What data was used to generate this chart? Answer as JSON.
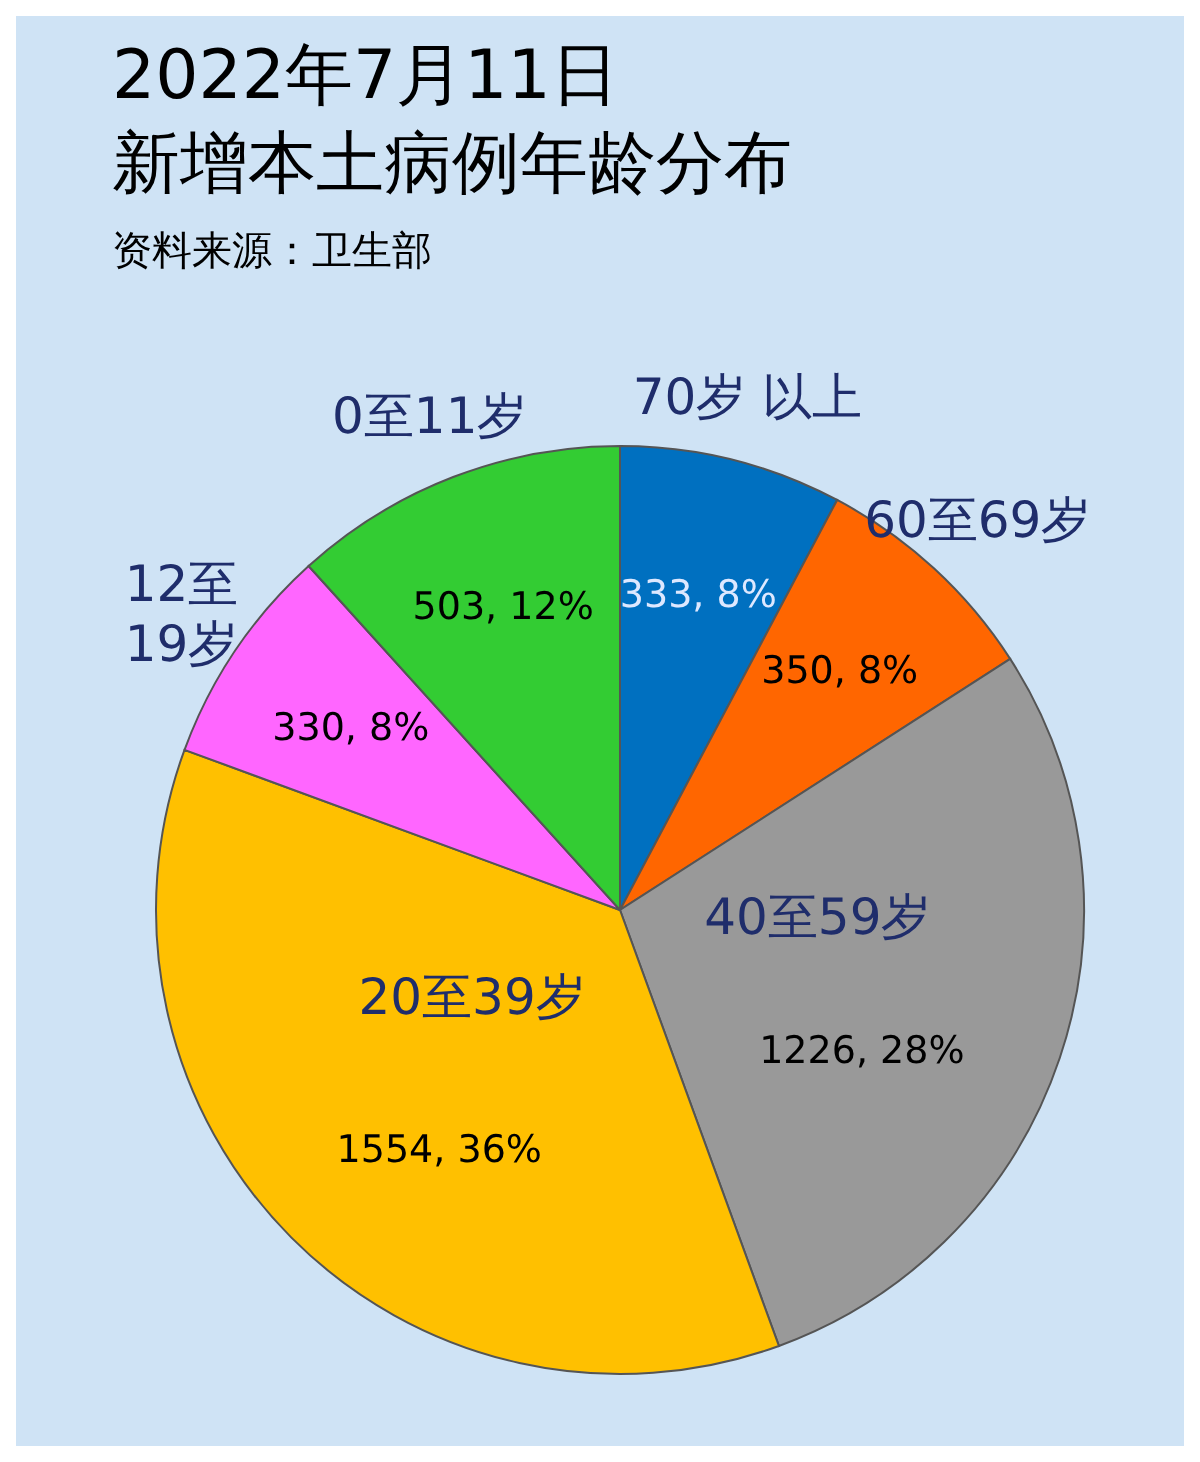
{
  "chart_data": {
    "type": "pie",
    "title": "2022年7月11日",
    "subtitle": "新增本土病例年龄分布",
    "annotations": [
      "资料来源：卫生部"
    ],
    "categories": [
      "70岁 以上",
      "60至69岁",
      "40至59岁",
      "20至39岁",
      "12至\n19岁",
      "0至11岁"
    ],
    "values": [
      333,
      350,
      1226,
      1554,
      330,
      503
    ],
    "colors": [
      "#0070c0",
      "#ff6600",
      "#999999",
      "#ffc000",
      "#ff66ff",
      "#33cc33"
    ],
    "value_labels": [
      "333, 8%",
      "350, 8%",
      "1226, 28%",
      "1554, 36%",
      "330, 8%",
      "503, 12%"
    ],
    "legend": false
  }
}
